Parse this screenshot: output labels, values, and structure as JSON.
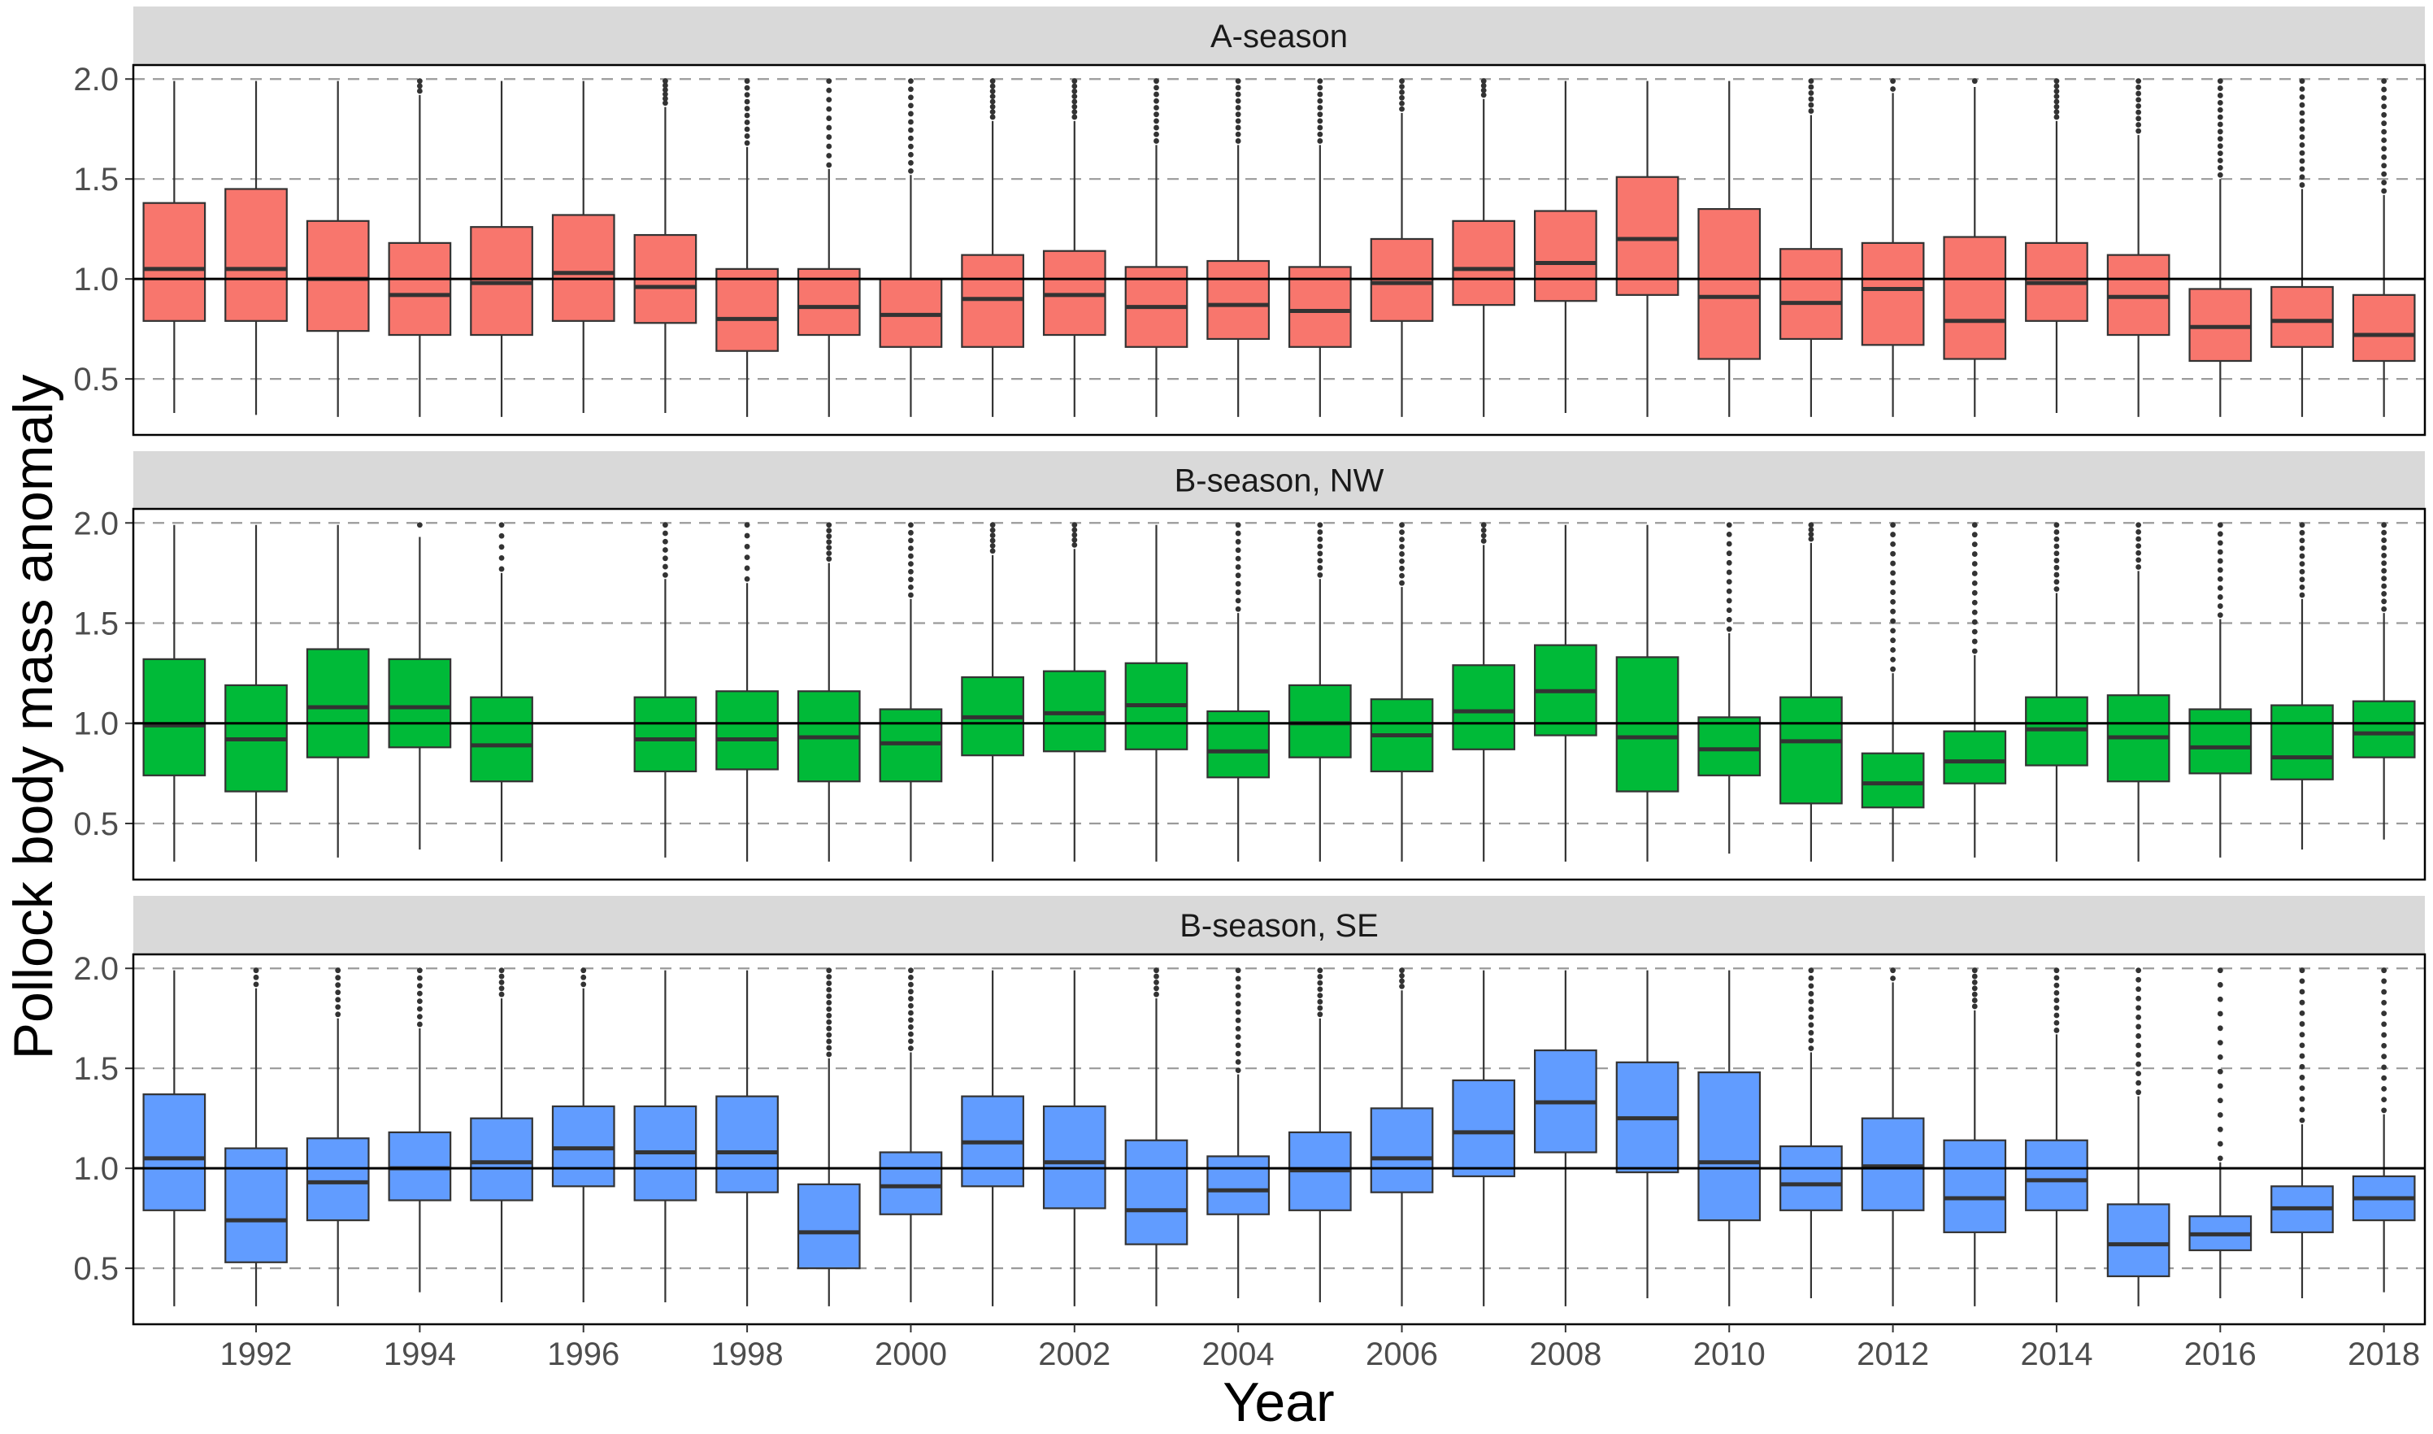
{
  "chart_data": {
    "type": "boxplot",
    "xlabel": "Year",
    "ylabel": "Pollock body mass anomaly",
    "ylim": [
      0.22,
      2.07
    ],
    "y_ticks": [
      "0.5",
      "1.0",
      "1.5",
      "2.0"
    ],
    "x_ticks": [
      "1992",
      "1994",
      "1996",
      "1998",
      "2000",
      "2002",
      "2004",
      "2006",
      "2008",
      "2010",
      "2012",
      "2014",
      "2016",
      "2018"
    ],
    "reference_line": 1.0,
    "grid": "dashed horizontal at y ticks",
    "years": [
      1991,
      1992,
      1993,
      1994,
      1995,
      1996,
      1997,
      1998,
      1999,
      2000,
      2001,
      2002,
      2003,
      2004,
      2005,
      2006,
      2007,
      2008,
      2009,
      2010,
      2011,
      2012,
      2013,
      2014,
      2015,
      2016,
      2017,
      2018
    ],
    "panels": [
      {
        "label": "A-season",
        "color": "#F8766D",
        "boxes": [
          {
            "year": 1991,
            "q1": 0.79,
            "median": 1.05,
            "q3": 1.38,
            "wlo": 0.33,
            "whi": 1.99,
            "out": 0
          },
          {
            "year": 1992,
            "q1": 0.79,
            "median": 1.05,
            "q3": 1.45,
            "wlo": 0.32,
            "whi": 1.99,
            "out": 0
          },
          {
            "year": 1993,
            "q1": 0.74,
            "median": 1.0,
            "q3": 1.29,
            "wlo": 0.31,
            "whi": 1.99,
            "out": 0
          },
          {
            "year": 1994,
            "q1": 0.72,
            "median": 0.92,
            "q3": 1.18,
            "wlo": 0.31,
            "whi": 1.92,
            "out": 3
          },
          {
            "year": 1995,
            "q1": 0.72,
            "median": 0.98,
            "q3": 1.26,
            "wlo": 0.31,
            "whi": 1.99,
            "out": 0
          },
          {
            "year": 1996,
            "q1": 0.79,
            "median": 1.03,
            "q3": 1.32,
            "wlo": 0.33,
            "whi": 1.99,
            "out": 0
          },
          {
            "year": 1997,
            "q1": 0.78,
            "median": 0.96,
            "q3": 1.22,
            "wlo": 0.33,
            "whi": 1.86,
            "out": 6
          },
          {
            "year": 1998,
            "q1": 0.64,
            "median": 0.8,
            "q3": 1.05,
            "wlo": 0.31,
            "whi": 1.66,
            "out": 10
          },
          {
            "year": 1999,
            "q1": 0.72,
            "median": 0.86,
            "q3": 1.05,
            "wlo": 0.31,
            "whi": 1.55,
            "out": 10
          },
          {
            "year": 2000,
            "q1": 0.66,
            "median": 0.82,
            "q3": 1.0,
            "wlo": 0.31,
            "whi": 1.52,
            "out": 12
          },
          {
            "year": 2001,
            "q1": 0.66,
            "median": 0.9,
            "q3": 1.12,
            "wlo": 0.31,
            "whi": 1.79,
            "out": 8
          },
          {
            "year": 2002,
            "q1": 0.72,
            "median": 0.92,
            "q3": 1.14,
            "wlo": 0.31,
            "whi": 1.79,
            "out": 8
          },
          {
            "year": 2003,
            "q1": 0.66,
            "median": 0.86,
            "q3": 1.06,
            "wlo": 0.31,
            "whi": 1.67,
            "out": 10
          },
          {
            "year": 2004,
            "q1": 0.7,
            "median": 0.87,
            "q3": 1.09,
            "wlo": 0.31,
            "whi": 1.67,
            "out": 10
          },
          {
            "year": 2005,
            "q1": 0.66,
            "median": 0.84,
            "q3": 1.06,
            "wlo": 0.31,
            "whi": 1.67,
            "out": 10
          },
          {
            "year": 2006,
            "q1": 0.79,
            "median": 0.98,
            "q3": 1.2,
            "wlo": 0.31,
            "whi": 1.83,
            "out": 6
          },
          {
            "year": 2007,
            "q1": 0.87,
            "median": 1.05,
            "q3": 1.29,
            "wlo": 0.31,
            "whi": 1.9,
            "out": 4
          },
          {
            "year": 2008,
            "q1": 0.89,
            "median": 1.08,
            "q3": 1.34,
            "wlo": 0.33,
            "whi": 1.99,
            "out": 0
          },
          {
            "year": 2009,
            "q1": 0.92,
            "median": 1.2,
            "q3": 1.51,
            "wlo": 0.31,
            "whi": 1.99,
            "out": 0
          },
          {
            "year": 2010,
            "q1": 0.6,
            "median": 0.91,
            "q3": 1.35,
            "wlo": 0.31,
            "whi": 1.99,
            "out": 0
          },
          {
            "year": 2011,
            "q1": 0.7,
            "median": 0.88,
            "q3": 1.15,
            "wlo": 0.31,
            "whi": 1.82,
            "out": 6
          },
          {
            "year": 2012,
            "q1": 0.67,
            "median": 0.95,
            "q3": 1.18,
            "wlo": 0.31,
            "whi": 1.93,
            "out": 2
          },
          {
            "year": 2013,
            "q1": 0.6,
            "median": 0.79,
            "q3": 1.21,
            "wlo": 0.31,
            "whi": 1.96,
            "out": 1
          },
          {
            "year": 2014,
            "q1": 0.79,
            "median": 0.98,
            "q3": 1.18,
            "wlo": 0.33,
            "whi": 1.79,
            "out": 8
          },
          {
            "year": 2015,
            "q1": 0.72,
            "median": 0.91,
            "q3": 1.12,
            "wlo": 0.31,
            "whi": 1.72,
            "out": 9
          },
          {
            "year": 2016,
            "q1": 0.59,
            "median": 0.76,
            "q3": 0.95,
            "wlo": 0.31,
            "whi": 1.5,
            "out": 14
          },
          {
            "year": 2017,
            "q1": 0.66,
            "median": 0.79,
            "q3": 0.96,
            "wlo": 0.31,
            "whi": 1.45,
            "out": 14
          },
          {
            "year": 2018,
            "q1": 0.59,
            "median": 0.72,
            "q3": 0.92,
            "wlo": 0.31,
            "whi": 1.42,
            "out": 14
          }
        ]
      },
      {
        "label": "B-season, NW",
        "color": "#00BA38",
        "boxes": [
          {
            "year": 1991,
            "q1": 0.74,
            "median": 0.99,
            "q3": 1.32,
            "wlo": 0.31,
            "whi": 1.99,
            "out": 0
          },
          {
            "year": 1992,
            "q1": 0.66,
            "median": 0.92,
            "q3": 1.19,
            "wlo": 0.31,
            "whi": 1.99,
            "out": 0
          },
          {
            "year": 1993,
            "q1": 0.83,
            "median": 1.08,
            "q3": 1.37,
            "wlo": 0.33,
            "whi": 1.99,
            "out": 0
          },
          {
            "year": 1994,
            "q1": 0.88,
            "median": 1.08,
            "q3": 1.32,
            "wlo": 0.37,
            "whi": 1.93,
            "out": 1
          },
          {
            "year": 1995,
            "q1": 0.71,
            "median": 0.89,
            "q3": 1.13,
            "wlo": 0.31,
            "whi": 1.75,
            "out": 5
          },
          {
            "year": 1997,
            "q1": 0.76,
            "median": 0.92,
            "q3": 1.13,
            "wlo": 0.33,
            "whi": 1.72,
            "out": 7
          },
          {
            "year": 1998,
            "q1": 0.77,
            "median": 0.92,
            "q3": 1.16,
            "wlo": 0.31,
            "whi": 1.7,
            "out": 6
          },
          {
            "year": 1999,
            "q1": 0.71,
            "median": 0.93,
            "q3": 1.16,
            "wlo": 0.31,
            "whi": 1.8,
            "out": 7
          },
          {
            "year": 2000,
            "q1": 0.71,
            "median": 0.9,
            "q3": 1.07,
            "wlo": 0.31,
            "whi": 1.62,
            "out": 10
          },
          {
            "year": 2001,
            "q1": 0.84,
            "median": 1.03,
            "q3": 1.23,
            "wlo": 0.31,
            "whi": 1.84,
            "out": 6
          },
          {
            "year": 2002,
            "q1": 0.86,
            "median": 1.05,
            "q3": 1.26,
            "wlo": 0.31,
            "whi": 1.87,
            "out": 5
          },
          {
            "year": 2003,
            "q1": 0.87,
            "median": 1.09,
            "q3": 1.3,
            "wlo": 0.31,
            "whi": 1.99,
            "out": 0
          },
          {
            "year": 2004,
            "q1": 0.73,
            "median": 0.86,
            "q3": 1.06,
            "wlo": 0.31,
            "whi": 1.55,
            "out": 11
          },
          {
            "year": 2005,
            "q1": 0.83,
            "median": 1.0,
            "q3": 1.19,
            "wlo": 0.31,
            "whi": 1.72,
            "out": 8
          },
          {
            "year": 2006,
            "q1": 0.76,
            "median": 0.94,
            "q3": 1.12,
            "wlo": 0.31,
            "whi": 1.68,
            "out": 9
          },
          {
            "year": 2007,
            "q1": 0.87,
            "median": 1.06,
            "q3": 1.29,
            "wlo": 0.31,
            "whi": 1.89,
            "out": 4
          },
          {
            "year": 2008,
            "q1": 0.94,
            "median": 1.16,
            "q3": 1.39,
            "wlo": 0.31,
            "whi": 1.99,
            "out": 0
          },
          {
            "year": 2009,
            "q1": 0.66,
            "median": 0.93,
            "q3": 1.33,
            "wlo": 0.31,
            "whi": 1.99,
            "out": 0
          },
          {
            "year": 2010,
            "q1": 0.74,
            "median": 0.87,
            "q3": 1.03,
            "wlo": 0.35,
            "whi": 1.45,
            "out": 12
          },
          {
            "year": 2011,
            "q1": 0.6,
            "median": 0.91,
            "q3": 1.13,
            "wlo": 0.31,
            "whi": 1.9,
            "out": 4
          },
          {
            "year": 2012,
            "q1": 0.58,
            "median": 0.7,
            "q3": 0.85,
            "wlo": 0.31,
            "whi": 1.25,
            "out": 16
          },
          {
            "year": 2013,
            "q1": 0.7,
            "median": 0.81,
            "q3": 0.96,
            "wlo": 0.33,
            "whi": 1.34,
            "out": 14
          },
          {
            "year": 2014,
            "q1": 0.79,
            "median": 0.97,
            "q3": 1.13,
            "wlo": 0.31,
            "whi": 1.65,
            "out": 10
          },
          {
            "year": 2015,
            "q1": 0.71,
            "median": 0.93,
            "q3": 1.14,
            "wlo": 0.31,
            "whi": 1.76,
            "out": 7
          },
          {
            "year": 2016,
            "q1": 0.75,
            "median": 0.88,
            "q3": 1.07,
            "wlo": 0.33,
            "whi": 1.52,
            "out": 11
          },
          {
            "year": 2017,
            "q1": 0.72,
            "median": 0.83,
            "q3": 1.09,
            "wlo": 0.37,
            "whi": 1.62,
            "out": 10
          },
          {
            "year": 2018,
            "q1": 0.83,
            "median": 0.95,
            "q3": 1.11,
            "wlo": 0.42,
            "whi": 1.55,
            "out": 12
          }
        ]
      },
      {
        "label": "B-season, SE",
        "color": "#619CFF",
        "boxes": [
          {
            "year": 1991,
            "q1": 0.79,
            "median": 1.05,
            "q3": 1.37,
            "wlo": 0.31,
            "whi": 1.99,
            "out": 0
          },
          {
            "year": 1992,
            "q1": 0.53,
            "median": 0.74,
            "q3": 1.1,
            "wlo": 0.31,
            "whi": 1.9,
            "out": 3
          },
          {
            "year": 1993,
            "q1": 0.74,
            "median": 0.93,
            "q3": 1.15,
            "wlo": 0.31,
            "whi": 1.75,
            "out": 7
          },
          {
            "year": 1994,
            "q1": 0.84,
            "median": 1.0,
            "q3": 1.18,
            "wlo": 0.38,
            "whi": 1.7,
            "out": 8
          },
          {
            "year": 1995,
            "q1": 0.84,
            "median": 1.03,
            "q3": 1.25,
            "wlo": 0.33,
            "whi": 1.85,
            "out": 5
          },
          {
            "year": 1996,
            "q1": 0.91,
            "median": 1.1,
            "q3": 1.31,
            "wlo": 0.33,
            "whi": 1.9,
            "out": 3
          },
          {
            "year": 1997,
            "q1": 0.84,
            "median": 1.08,
            "q3": 1.31,
            "wlo": 0.33,
            "whi": 1.99,
            "out": 0
          },
          {
            "year": 1998,
            "q1": 0.88,
            "median": 1.08,
            "q3": 1.36,
            "wlo": 0.31,
            "whi": 1.99,
            "out": 0
          },
          {
            "year": 1999,
            "q1": 0.5,
            "median": 0.68,
            "q3": 0.92,
            "wlo": 0.31,
            "whi": 1.55,
            "out": 14
          },
          {
            "year": 2000,
            "q1": 0.77,
            "median": 0.91,
            "q3": 1.08,
            "wlo": 0.33,
            "whi": 1.58,
            "out": 12
          },
          {
            "year": 2001,
            "q1": 0.91,
            "median": 1.13,
            "q3": 1.36,
            "wlo": 0.31,
            "whi": 1.99,
            "out": 0
          },
          {
            "year": 2002,
            "q1": 0.8,
            "median": 1.03,
            "q3": 1.31,
            "wlo": 0.31,
            "whi": 1.99,
            "out": 0
          },
          {
            "year": 2003,
            "q1": 0.62,
            "median": 0.79,
            "q3": 1.14,
            "wlo": 0.31,
            "whi": 1.85,
            "out": 5
          },
          {
            "year": 2004,
            "q1": 0.77,
            "median": 0.89,
            "q3": 1.06,
            "wlo": 0.35,
            "whi": 1.47,
            "out": 13
          },
          {
            "year": 2005,
            "q1": 0.79,
            "median": 0.99,
            "q3": 1.18,
            "wlo": 0.33,
            "whi": 1.75,
            "out": 8
          },
          {
            "year": 2006,
            "q1": 0.88,
            "median": 1.05,
            "q3": 1.3,
            "wlo": 0.31,
            "whi": 1.89,
            "out": 4
          },
          {
            "year": 2007,
            "q1": 0.96,
            "median": 1.18,
            "q3": 1.44,
            "wlo": 0.31,
            "whi": 1.99,
            "out": 0
          },
          {
            "year": 2008,
            "q1": 1.08,
            "median": 1.33,
            "q3": 1.59,
            "wlo": 0.31,
            "whi": 1.99,
            "out": 0
          },
          {
            "year": 2009,
            "q1": 0.98,
            "median": 1.25,
            "q3": 1.53,
            "wlo": 0.35,
            "whi": 1.99,
            "out": 0
          },
          {
            "year": 2010,
            "q1": 0.74,
            "median": 1.03,
            "q3": 1.48,
            "wlo": 0.31,
            "whi": 1.99,
            "out": 0
          },
          {
            "year": 2011,
            "q1": 0.79,
            "median": 0.92,
            "q3": 1.11,
            "wlo": 0.35,
            "whi": 1.58,
            "out": 11
          },
          {
            "year": 2012,
            "q1": 0.79,
            "median": 1.01,
            "q3": 1.25,
            "wlo": 0.31,
            "whi": 1.93,
            "out": 2
          },
          {
            "year": 2013,
            "q1": 0.68,
            "median": 0.85,
            "q3": 1.14,
            "wlo": 0.31,
            "whi": 1.79,
            "out": 7
          },
          {
            "year": 2014,
            "q1": 0.79,
            "median": 0.94,
            "q3": 1.14,
            "wlo": 0.33,
            "whi": 1.67,
            "out": 9
          },
          {
            "year": 2015,
            "q1": 0.46,
            "median": 0.62,
            "q3": 0.82,
            "wlo": 0.31,
            "whi": 1.36,
            "out": 14
          },
          {
            "year": 2016,
            "q1": 0.59,
            "median": 0.67,
            "q3": 0.76,
            "wlo": 0.35,
            "whi": 1.03,
            "out": 14
          },
          {
            "year": 2017,
            "q1": 0.68,
            "median": 0.8,
            "q3": 0.91,
            "wlo": 0.35,
            "whi": 1.22,
            "out": 15
          },
          {
            "year": 2018,
            "q1": 0.74,
            "median": 0.85,
            "q3": 0.96,
            "wlo": 0.38,
            "whi": 1.27,
            "out": 14
          }
        ]
      }
    ]
  }
}
